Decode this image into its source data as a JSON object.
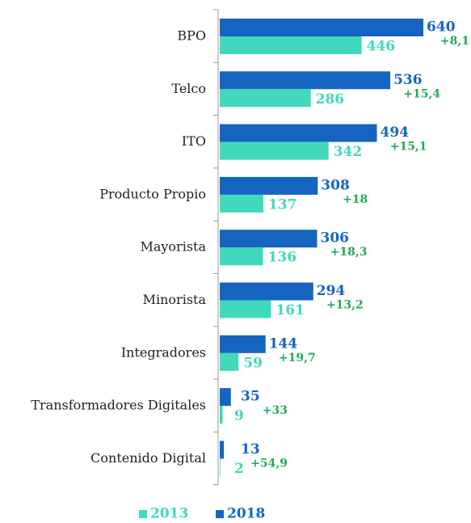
{
  "chart_data": {
    "type": "bar",
    "orientation": "horizontal",
    "categories": [
      "BPO",
      "Telco",
      "ITO",
      "Producto Propio",
      "Mayorista",
      "Minorista",
      "Integradores",
      "Transformadores Digitales",
      "Contenido Digital"
    ],
    "series": [
      {
        "name": "2018",
        "color": "#1565c0",
        "values": [
          640,
          536,
          494,
          308,
          306,
          294,
          144,
          35,
          13
        ]
      },
      {
        "name": "2013",
        "color": "#40d9bc",
        "values": [
          446,
          286,
          342,
          137,
          136,
          161,
          59,
          9,
          2
        ]
      }
    ],
    "annotations": [
      "+8,1",
      "+15,4",
      "+15,1",
      "+18",
      "+18,3",
      "+13,2",
      "+19,7",
      "+33",
      "+54,9"
    ],
    "annotation_color": "#1faa59",
    "xlim": [
      0,
      650
    ],
    "legend": "bottom"
  }
}
